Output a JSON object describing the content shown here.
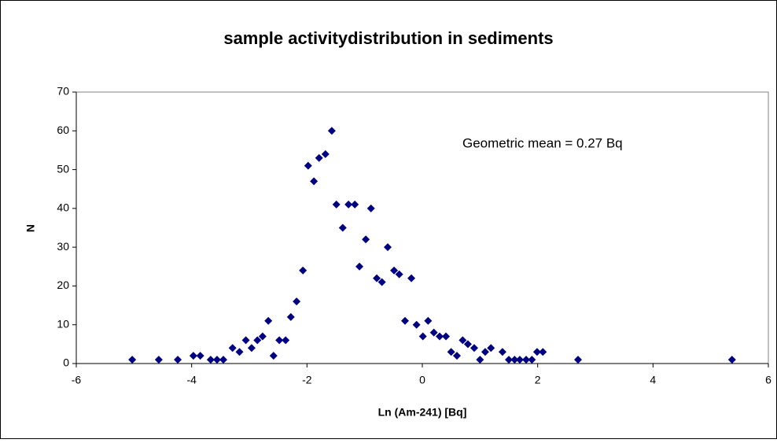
{
  "chart_data": {
    "type": "scatter",
    "title": "sample  activitydistribution in sediments",
    "xlabel": "Ln (Am-241) [Bq]",
    "ylabel": "N",
    "annotation": "Geometric mean = 0.27 Bq",
    "xlim": [
      -6,
      6
    ],
    "xticks": [
      -6,
      -4,
      -2,
      0,
      2,
      4,
      6
    ],
    "ylim": [
      0,
      70
    ],
    "yticks": [
      0,
      10,
      20,
      30,
      40,
      50,
      60,
      70
    ],
    "grid": false,
    "series": [
      {
        "color": "#000080",
        "x": [
          -5.03,
          -4.57,
          -4.24,
          -3.97,
          -3.85,
          -3.67,
          -3.56,
          -3.45,
          -3.29,
          -3.17,
          -3.06,
          -2.96,
          -2.86,
          -2.77,
          -2.67,
          -2.58,
          -2.48,
          -2.37,
          -2.28,
          -2.18,
          -2.07,
          -1.98,
          -1.88,
          -1.79,
          -1.68,
          -1.57,
          -1.49,
          -1.38,
          -1.28,
          -1.17,
          -1.09,
          -0.98,
          -0.89,
          -0.79,
          -0.7,
          -0.6,
          -0.49,
          -0.4,
          -0.3,
          -0.19,
          -0.1,
          0.01,
          0.1,
          0.2,
          0.3,
          0.41,
          0.5,
          0.6,
          0.7,
          0.79,
          0.9,
          1.0,
          1.09,
          1.19,
          1.39,
          1.5,
          1.6,
          1.69,
          1.8,
          1.9,
          1.99,
          2.09,
          2.7,
          5.37
        ],
        "values": [
          1,
          1,
          1,
          2,
          2,
          1,
          1,
          1,
          4,
          3,
          6,
          4,
          6,
          7,
          11,
          2,
          6,
          6,
          12,
          16,
          24,
          51,
          47,
          53,
          54,
          60,
          41,
          35,
          41,
          41,
          25,
          32,
          40,
          22,
          21,
          30,
          24,
          23,
          11,
          22,
          10,
          7,
          11,
          8,
          7,
          7,
          3,
          2,
          6,
          5,
          4,
          1,
          3,
          4,
          3,
          1,
          1,
          1,
          1,
          1,
          3,
          3,
          1,
          1
        ]
      }
    ]
  }
}
